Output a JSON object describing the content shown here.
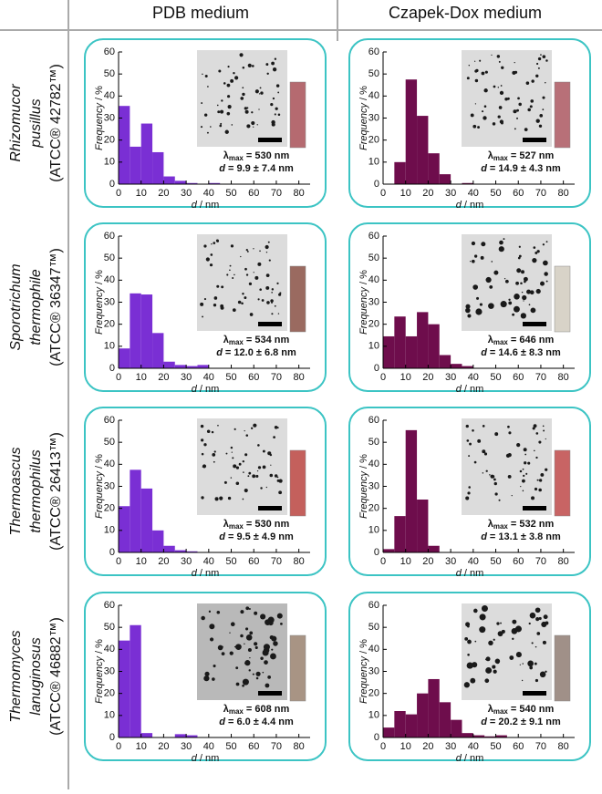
{
  "columns": [
    "PDB medium",
    "Czapek-Dox medium"
  ],
  "rows": [
    {
      "line1": "Rhizomucor",
      "line2": "pusillus",
      "line3": "(ATCC® 42782™)"
    },
    {
      "line1": "Sporotrichum",
      "line2": "thermophile",
      "line3": "(ATCC® 36347™)"
    },
    {
      "line1": "Thermoascus",
      "line2": "thermophilus",
      "line3": "(ATCC® 26413™)"
    },
    {
      "line1": "Thermomyces",
      "line2": "lanuginosus",
      "line3": "(ATCC® 46882™)"
    }
  ],
  "chart_data": [
    {
      "type": "histogram",
      "color": "#7a2fd4",
      "bins": [
        0,
        5,
        10,
        15,
        20,
        25,
        30,
        35,
        40,
        45,
        50,
        55,
        60,
        65,
        70,
        75,
        80,
        85
      ],
      "counts": [
        35.5,
        17,
        27.5,
        14.5,
        3.5,
        1.5,
        0.5,
        0,
        0.5,
        0,
        0,
        0,
        0,
        0,
        0,
        0,
        0
      ],
      "xlim": [
        0,
        85
      ],
      "ylim": [
        0,
        60
      ],
      "xticks": [
        0,
        10,
        20,
        30,
        40,
        50,
        60,
        70,
        80
      ],
      "yticks": [
        0,
        10,
        20,
        30,
        40,
        50,
        60
      ],
      "x_label_symbol": "d",
      "x_label": "/ nm",
      "y_label_word": "Frequency",
      "y_label_unit": "/ %",
      "lambda_symbol": "λ",
      "lambda_subscript": "max",
      "lambda_text": "= 530 nm",
      "size_symbol": "d",
      "size_text": "= 9.9 ± 7.4 nm"
    },
    {
      "type": "histogram",
      "color": "#6e0d4c",
      "bins": [
        0,
        5,
        10,
        15,
        20,
        25,
        30,
        35,
        40,
        45,
        50,
        55,
        60,
        65,
        70,
        75,
        80,
        85
      ],
      "counts": [
        0,
        10,
        47.5,
        31,
        14,
        4.5,
        0,
        0.5,
        0,
        0,
        0,
        0,
        0,
        0,
        0,
        0,
        0
      ],
      "xlim": [
        0,
        85
      ],
      "ylim": [
        0,
        60
      ],
      "xticks": [
        0,
        10,
        20,
        30,
        40,
        50,
        60,
        70,
        80
      ],
      "yticks": [
        0,
        10,
        20,
        30,
        40,
        50,
        60
      ],
      "x_label_symbol": "d",
      "x_label": "/ nm",
      "y_label_word": "Frequency",
      "y_label_unit": "/ %",
      "lambda_symbol": "λ",
      "lambda_subscript": "max",
      "lambda_text": "= 527 nm",
      "size_symbol": "d",
      "size_text": "= 14.9 ± 4.3 nm"
    },
    {
      "type": "histogram",
      "color": "#7a2fd4",
      "bins": [
        0,
        5,
        10,
        15,
        20,
        25,
        30,
        35,
        40,
        45,
        50,
        55,
        60,
        65,
        70,
        75,
        80,
        85
      ],
      "counts": [
        9,
        34,
        33.5,
        16,
        3,
        1.5,
        1,
        1.5,
        0,
        0,
        0,
        0,
        0,
        0,
        0,
        0,
        0
      ],
      "xlim": [
        0,
        85
      ],
      "ylim": [
        0,
        60
      ],
      "xticks": [
        0,
        10,
        20,
        30,
        40,
        50,
        60,
        70,
        80
      ],
      "yticks": [
        0,
        10,
        20,
        30,
        40,
        50,
        60
      ],
      "x_label_symbol": "d",
      "x_label": "/ nm",
      "y_label_word": "Frequency",
      "y_label_unit": "/ %",
      "lambda_symbol": "λ",
      "lambda_subscript": "max",
      "lambda_text": "= 534 nm",
      "size_symbol": "d",
      "size_text": "= 12.0 ± 6.8 nm"
    },
    {
      "type": "histogram",
      "color": "#6e0d4c",
      "bins": [
        0,
        5,
        10,
        15,
        20,
        25,
        30,
        35,
        40,
        45,
        50,
        55,
        60,
        65,
        70,
        75,
        80,
        85
      ],
      "counts": [
        14.5,
        23.5,
        14.5,
        25.5,
        20,
        6,
        2,
        1,
        0,
        0,
        0,
        0,
        0,
        0,
        0,
        0,
        0
      ],
      "xlim": [
        0,
        85
      ],
      "ylim": [
        0,
        60
      ],
      "xticks": [
        0,
        10,
        20,
        30,
        40,
        50,
        60,
        70,
        80
      ],
      "yticks": [
        0,
        10,
        20,
        30,
        40,
        50,
        60
      ],
      "x_label_symbol": "d",
      "x_label": "/ nm",
      "y_label_word": "Frequency",
      "y_label_unit": "/ %",
      "lambda_symbol": "λ",
      "lambda_subscript": "max",
      "lambda_text": "= 646 nm",
      "size_symbol": "d",
      "size_text": "= 14.6 ± 8.3 nm"
    },
    {
      "type": "histogram",
      "color": "#7a2fd4",
      "bins": [
        0,
        5,
        10,
        15,
        20,
        25,
        30,
        35,
        40,
        45,
        50,
        55,
        60,
        65,
        70,
        75,
        80,
        85
      ],
      "counts": [
        21,
        37.5,
        29,
        10,
        3,
        1,
        0.5,
        0,
        0,
        0,
        0,
        0,
        0,
        0,
        0,
        0,
        0
      ],
      "xlim": [
        0,
        85
      ],
      "ylim": [
        0,
        60
      ],
      "xticks": [
        0,
        10,
        20,
        30,
        40,
        50,
        60,
        70,
        80
      ],
      "yticks": [
        0,
        10,
        20,
        30,
        40,
        50,
        60
      ],
      "x_label_symbol": "d",
      "x_label": "/ nm",
      "y_label_word": "Frequency",
      "y_label_unit": "/ %",
      "lambda_symbol": "λ",
      "lambda_subscript": "max",
      "lambda_text": "= 530 nm",
      "size_symbol": "d",
      "size_text": "= 9.5 ± 4.9 nm"
    },
    {
      "type": "histogram",
      "color": "#6e0d4c",
      "bins": [
        0,
        5,
        10,
        15,
        20,
        25,
        30,
        35,
        40,
        45,
        50,
        55,
        60,
        65,
        70,
        75,
        80,
        85
      ],
      "counts": [
        1.5,
        16.5,
        55.5,
        24,
        3,
        0,
        0,
        0,
        0,
        0,
        0,
        0,
        0,
        0,
        0,
        0,
        0
      ],
      "xlim": [
        0,
        85
      ],
      "ylim": [
        0,
        60
      ],
      "xticks": [
        0,
        10,
        20,
        30,
        40,
        50,
        60,
        70,
        80
      ],
      "yticks": [
        0,
        10,
        20,
        30,
        40,
        50,
        60
      ],
      "x_label_symbol": "d",
      "x_label": "/ nm",
      "y_label_word": "Frequency",
      "y_label_unit": "/ %",
      "lambda_symbol": "λ",
      "lambda_subscript": "max",
      "lambda_text": "= 532 nm",
      "size_symbol": "d",
      "size_text": "= 13.1 ± 3.8 nm"
    },
    {
      "type": "histogram",
      "color": "#7a2fd4",
      "bins": [
        0,
        5,
        10,
        15,
        20,
        25,
        30,
        35,
        40,
        45,
        50,
        55,
        60,
        65,
        70,
        75,
        80,
        85
      ],
      "counts": [
        44,
        51,
        2,
        0,
        0,
        1.5,
        1,
        0,
        0,
        0,
        0,
        0,
        0,
        0,
        0,
        0,
        0
      ],
      "xlim": [
        0,
        85
      ],
      "ylim": [
        0,
        60
      ],
      "xticks": [
        0,
        10,
        20,
        30,
        40,
        50,
        60,
        70,
        80
      ],
      "yticks": [
        0,
        10,
        20,
        30,
        40,
        50,
        60
      ],
      "x_label_symbol": "d",
      "x_label": "/ nm",
      "y_label_word": "Frequency",
      "y_label_unit": "/ %",
      "lambda_symbol": "λ",
      "lambda_subscript": "max",
      "lambda_text": "= 608 nm",
      "size_symbol": "d",
      "size_text": "= 6.0 ± 4.4 nm"
    },
    {
      "type": "histogram",
      "color": "#6e0d4c",
      "bins": [
        0,
        5,
        10,
        15,
        20,
        25,
        30,
        35,
        40,
        45,
        50,
        55,
        60,
        65,
        70,
        75,
        80,
        85
      ],
      "counts": [
        4.5,
        12,
        10.5,
        20,
        26.5,
        16,
        8,
        2,
        1,
        0.5,
        1,
        0,
        0,
        0,
        0,
        0,
        0
      ],
      "xlim": [
        0,
        85
      ],
      "ylim": [
        0,
        60
      ],
      "xticks": [
        0,
        10,
        20,
        30,
        40,
        50,
        60,
        70,
        80
      ],
      "yticks": [
        0,
        10,
        20,
        30,
        40,
        50,
        60
      ],
      "x_label_symbol": "d",
      "x_label": "/ nm",
      "y_label_word": "Frequency",
      "y_label_unit": "/ %",
      "lambda_symbol": "λ",
      "lambda_subscript": "max",
      "lambda_text": "= 540 nm",
      "size_symbol": "d",
      "size_text": "= 20.2 ± 9.1 nm"
    }
  ]
}
